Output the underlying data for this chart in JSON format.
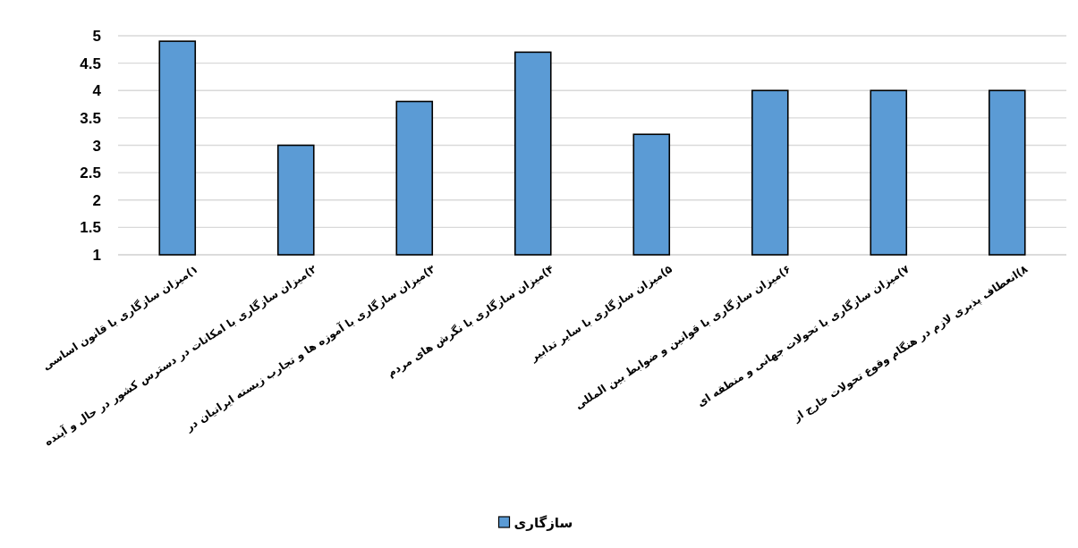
{
  "chart_data": {
    "type": "bar",
    "categories": [
      "۱)میزان سازگاری با قانون اساسی",
      "۲)میزان سازگاری با امکانات در دسترس کشور در حال و آینده",
      "۳)میزان سازگاری با آموزه ها و تجارب زیسته ایرانیان در",
      "۴)میزان سازگاری با نگرش های مردم",
      "۵)میزان سازگاری با سایر تدابیر",
      "۶)میزان سازگاری با قوانین و ضوابط بین المللی",
      "۷)میزان سازگاری با تحولات جهانی و منطقه ای",
      "۸)انعطاف پذیری لازم در هنگام وقوع تحولات خارج از"
    ],
    "series": [
      {
        "name": "سازگاری",
        "color": "#5b9bd5",
        "values": [
          4.9,
          3.0,
          3.8,
          4.7,
          3.2,
          4.0,
          4.0,
          4.0
        ]
      }
    ],
    "ylim": [
      1,
      5
    ],
    "yticks": [
      1,
      1.5,
      2,
      2.5,
      3,
      3.5,
      4,
      4.5,
      5
    ],
    "grid": "y",
    "legend": "bottom"
  }
}
